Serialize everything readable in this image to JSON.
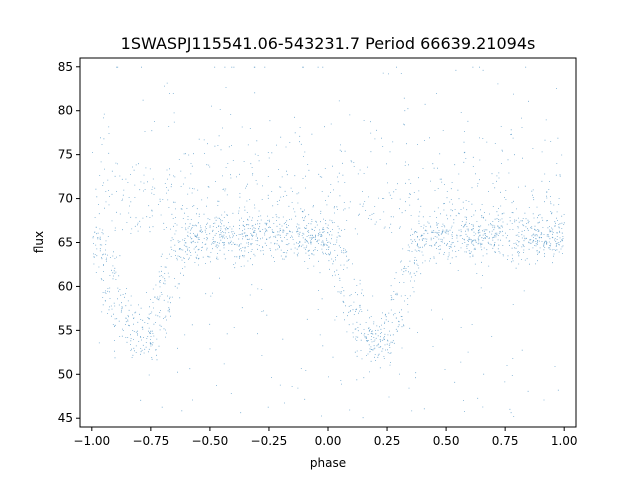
{
  "chart_data": {
    "type": "scatter",
    "title": "1SWASPJ115541.06-543231.7 Period 66639.21094s",
    "xlabel": "phase",
    "ylabel": "flux",
    "xlim": [
      -1.05,
      1.05
    ],
    "ylim": [
      44,
      86
    ],
    "xticks": [
      -1.0,
      -0.75,
      -0.5,
      -0.25,
      0.0,
      0.25,
      0.5,
      0.75,
      1.0
    ],
    "xtick_labels": [
      "−1.00",
      "−0.75",
      "−0.50",
      "−0.25",
      "0.00",
      "0.25",
      "0.50",
      "0.75",
      "1.00"
    ],
    "yticks": [
      45,
      50,
      55,
      60,
      65,
      70,
      75,
      80,
      85
    ],
    "ytick_labels": [
      "45",
      "50",
      "55",
      "60",
      "65",
      "70",
      "75",
      "80",
      "85"
    ],
    "grid": false,
    "legend": "none",
    "point_color": "#1f77b4",
    "series": [
      {
        "phase_range": [
          -1.0,
          1.0
        ],
        "baseline_flux": 65.5,
        "baseline_scatter": 1.4,
        "eclipses": [
          {
            "center_phase": -0.8,
            "min_flux": 53.5,
            "ingress_start": -0.99,
            "egress_end": -0.6
          },
          {
            "center_phase": 0.2,
            "min_flux": 53.5,
            "ingress_start": 0.01,
            "egress_end": 0.4
          }
        ],
        "outlier_flux_range": [
          45,
          85
        ]
      }
    ]
  }
}
